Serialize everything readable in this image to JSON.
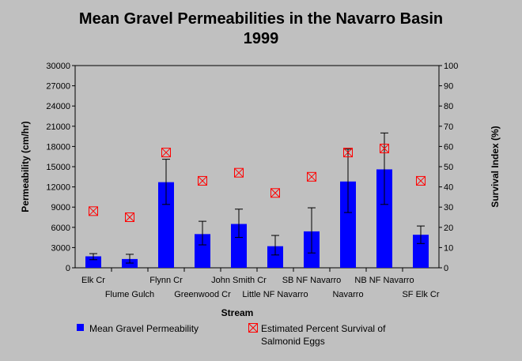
{
  "chart_data": {
    "type": "bar",
    "title": "Mean Gravel Permeabilities in the Navarro Basin",
    "subtitle": "1999",
    "xlabel": "Stream",
    "ylabel": "Permeability (cm/hr)",
    "y2label": "Survival Index (%)",
    "ylim": [
      0,
      30000
    ],
    "y2lim": [
      0,
      100
    ],
    "yticks": [
      "0",
      "3000",
      "6000",
      "9000",
      "12000",
      "15000",
      "18000",
      "21000",
      "24000",
      "27000",
      "30000"
    ],
    "y2ticks": [
      "0",
      "10",
      "20",
      "30",
      "40",
      "50",
      "60",
      "70",
      "80",
      "90",
      "100"
    ],
    "categories": [
      "Elk Cr",
      "Flume Gulch",
      "Flynn Cr",
      "Greenwood Cr",
      "John Smith Cr",
      "Little NF Navarro",
      "SB NF Navarro",
      "Navarro",
      "NB NF Navarro",
      "SF Elk Cr"
    ],
    "series": [
      {
        "name": "Mean Gravel Permeability",
        "axis": "left",
        "color": "#0000ff",
        "values": [
          1700,
          1300,
          12700,
          5000,
          6500,
          3200,
          5400,
          12800,
          14600,
          4900
        ],
        "error_low": [
          1200,
          700,
          9400,
          3400,
          4500,
          1900,
          2200,
          8200,
          9400,
          3600
        ],
        "error_high": [
          2100,
          2000,
          16100,
          6900,
          8700,
          4800,
          8900,
          17600,
          20000,
          6200
        ]
      },
      {
        "name": "Estimated Percent Survival of Salmonid Eggs",
        "axis": "right",
        "color": "#ff0000",
        "values": [
          28,
          25,
          57,
          43,
          47,
          37,
          45,
          57,
          59,
          43
        ]
      }
    ],
    "grid": false,
    "legend": "bottom"
  },
  "legend": {
    "bar_label": "Mean Gravel Permeability",
    "marker_label_line1": "Estimated Percent Survival of",
    "marker_label_line2": "Salmonid Eggs"
  }
}
